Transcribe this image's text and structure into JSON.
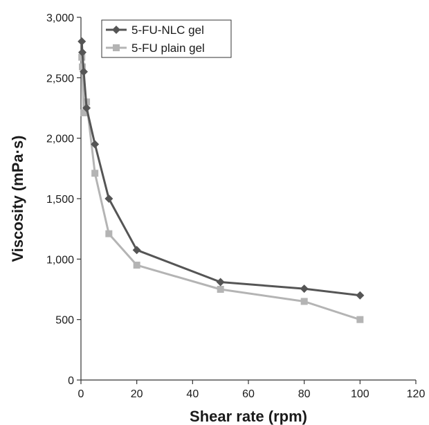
{
  "chart_data": {
    "type": "line",
    "title": "",
    "xlabel": "Shear rate (rpm)",
    "ylabel": "Viscosity (mPa·s)",
    "xlim": [
      0,
      120
    ],
    "ylim": [
      0,
      3000
    ],
    "x_ticks": [
      0,
      20,
      40,
      60,
      80,
      100,
      120
    ],
    "y_ticks": [
      0,
      500,
      1000,
      1500,
      2000,
      2500,
      3000
    ],
    "x_tick_labels": [
      "0",
      "20",
      "40",
      "60",
      "80",
      "100",
      "120"
    ],
    "y_tick_labels": [
      "0",
      "500",
      "1,000",
      "1,500",
      "2,000",
      "2,500",
      "3,000"
    ],
    "grid": false,
    "legend_position": "top-left",
    "series": [
      {
        "name": "5-FU-NLC gel",
        "color": "#555555",
        "marker": "diamond",
        "x": [
          0.3,
          0.5,
          1,
          2,
          5,
          10,
          20,
          50,
          80,
          100
        ],
        "y": [
          2800,
          2710,
          2550,
          2250,
          1950,
          1500,
          1075,
          810,
          755,
          700
        ]
      },
      {
        "name": "5-FU plain gel",
        "color": "#b4b4b4",
        "marker": "square",
        "x": [
          0.3,
          0.5,
          1,
          2,
          5,
          10,
          20,
          50,
          80,
          100
        ],
        "y": [
          2670,
          2590,
          2210,
          2300,
          1710,
          1210,
          950,
          750,
          650,
          500
        ]
      }
    ]
  }
}
